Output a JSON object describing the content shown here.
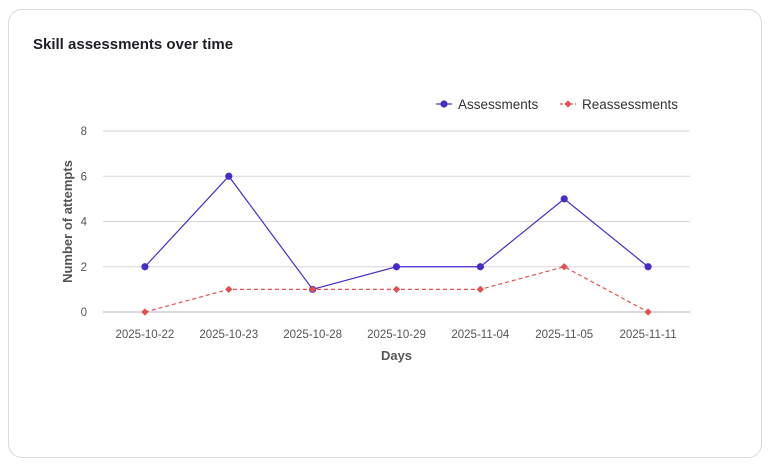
{
  "card": {
    "title": "Skill assessments over time"
  },
  "chart_data": {
    "type": "line",
    "title": "",
    "xlabel": "Days",
    "ylabel": "Number of attempts",
    "categories": [
      "2025-10-22",
      "2025-10-23",
      "2025-10-28",
      "2025-10-29",
      "2025-11-04",
      "2025-11-05",
      "2025-11-11"
    ],
    "ylim": [
      0,
      8
    ],
    "yticks": [
      0,
      2,
      4,
      6,
      8
    ],
    "grid": true,
    "legend_position": "top-right",
    "series": [
      {
        "name": "Assessments",
        "values": [
          2,
          6,
          1,
          2,
          2,
          5,
          2
        ],
        "color": "#4a2bc9",
        "marker": "circle",
        "line_style": "solid"
      },
      {
        "name": "Reassessments",
        "values": [
          0,
          1,
          1,
          1,
          1,
          2,
          0
        ],
        "color": "#e05252",
        "marker": "diamond",
        "line_style": "dashed"
      }
    ]
  }
}
